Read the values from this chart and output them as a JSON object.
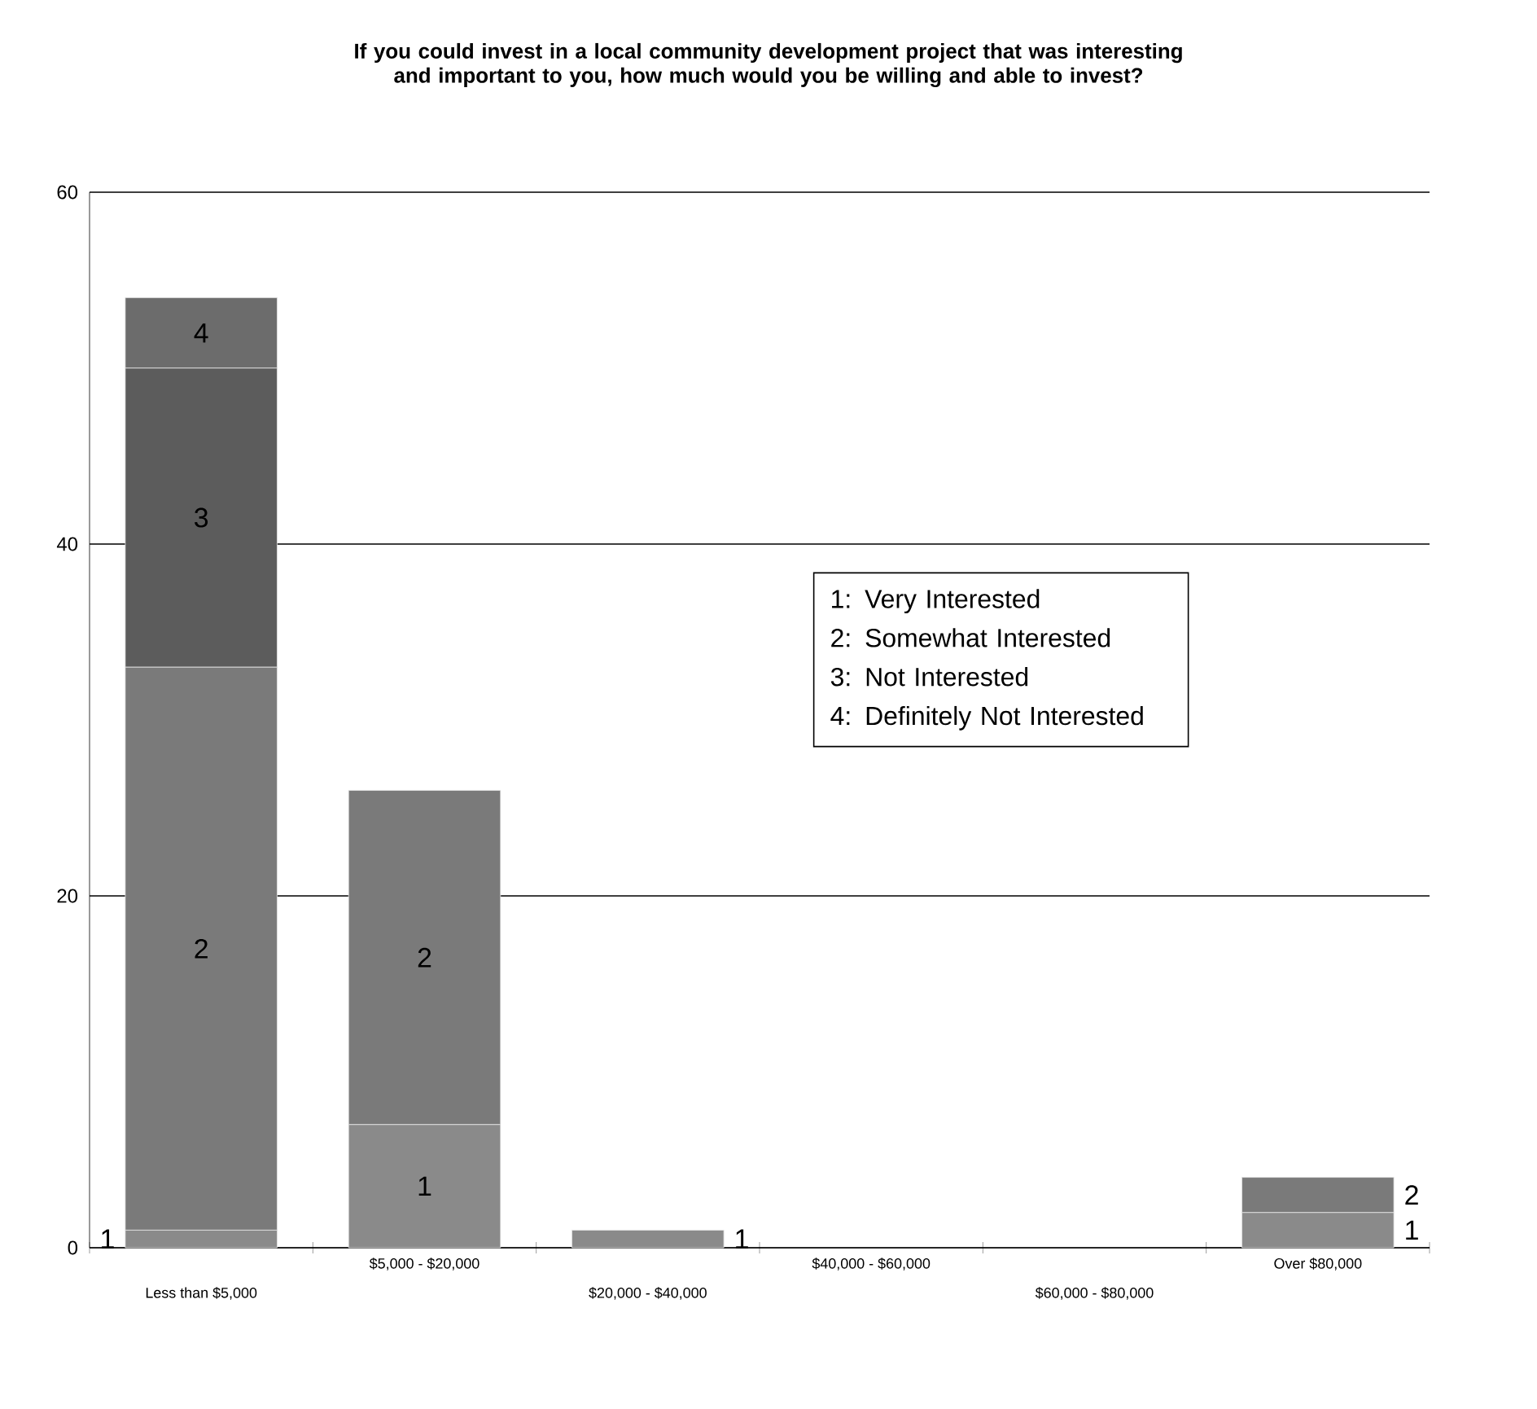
{
  "chart_data": {
    "type": "bar",
    "title": "If you could invest in a local community development project that was interesting and important to you, how much would you be willing and able to invest?",
    "categories": [
      "Less than $5,000",
      "$5,000 - $20,000",
      "$20,000 - $40,000",
      "$40,000 - $60,000",
      "$60,000 - $80,000",
      "Over $80,000"
    ],
    "stacked": true,
    "legend": false,
    "grid": "y",
    "ylim": [
      0,
      60
    ],
    "yticks": [
      0,
      20,
      40,
      60
    ],
    "series": [
      {
        "name": "1",
        "color": "#8a8a8a",
        "values": [
          1,
          7,
          1,
          null,
          null,
          2
        ]
      },
      {
        "name": "2",
        "color": "#7a7a7a",
        "values": [
          32,
          19,
          null,
          null,
          null,
          2
        ]
      },
      {
        "name": "3",
        "color": "#5c5c5c",
        "values": [
          17,
          null,
          null,
          null,
          null,
          null
        ]
      },
      {
        "name": "4",
        "color": "#6c6c6c",
        "values": [
          4,
          null,
          null,
          null,
          null,
          null
        ]
      }
    ],
    "annotations": [
      "1: Very Interested",
      "2: Somewhat Interested",
      "3: Not Interested",
      "4: Definitely Not Interested"
    ]
  }
}
